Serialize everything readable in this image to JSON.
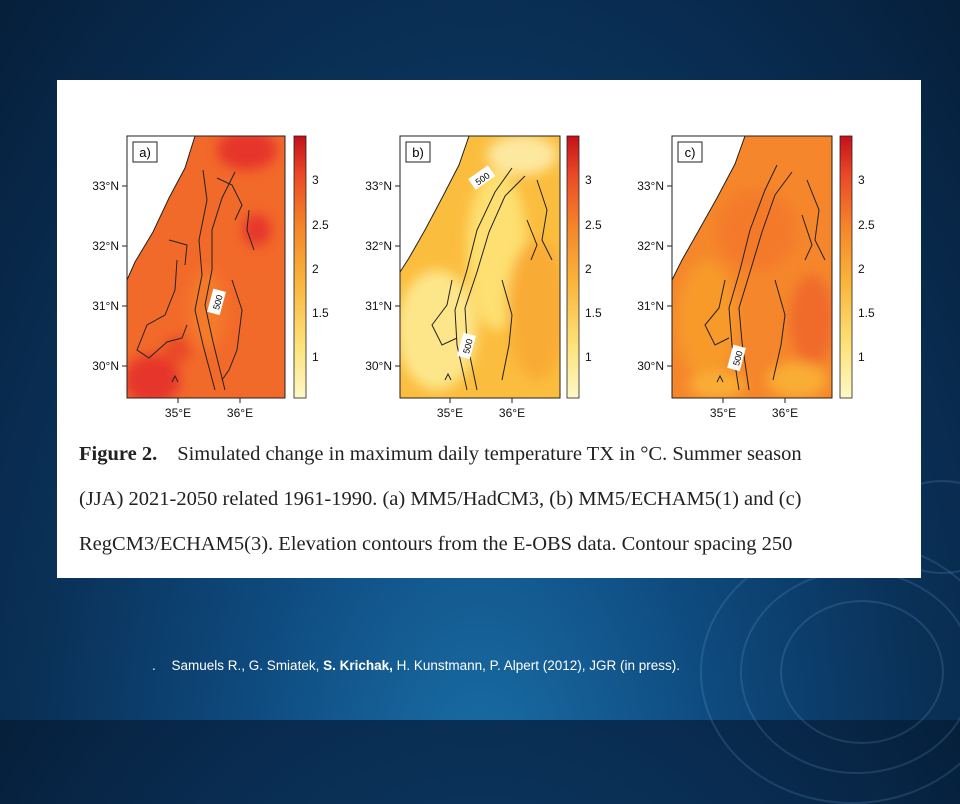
{
  "figure": {
    "panels": [
      {
        "label": "a)",
        "contour_label": "500",
        "lat_ticks": [
          "33°N",
          "32°N",
          "31°N",
          "30°N"
        ],
        "lon_ticks": [
          "35°E",
          "36°E"
        ]
      },
      {
        "label": "b)",
        "contour_label": "500",
        "contour_label_2": "500",
        "lat_ticks": [
          "33°N",
          "32°N",
          "31°N",
          "30°N"
        ],
        "lon_ticks": [
          "35°E",
          "36°E"
        ]
      },
      {
        "label": "c)",
        "contour_label": "500",
        "lat_ticks": [
          "33°N",
          "32°N",
          "31°N",
          "30°N"
        ],
        "lon_ticks": [
          "35°E",
          "36°E"
        ]
      }
    ],
    "colorbar_ticks": [
      "3",
      "2.5",
      "2",
      "1.5",
      "1"
    ],
    "colorscale": [
      "#fdf6b4",
      "#fde071",
      "#fbbd3e",
      "#f79a2b",
      "#f27a2a",
      "#ea5427",
      "#e02b22",
      "#c81019"
    ]
  },
  "caption": {
    "figure_label": "Figure 2.",
    "line1": "Simulated change in maximum daily temperature TX in °C. Summer season",
    "line2": "(JJA) 2021-2050 related 1961-1990. (a) MM5/HadCM3, (b) MM5/ECHAM5(1) and (c)",
    "line3": "RegCM3/ECHAM5(3). Elevation contours from the E-OBS data. Contour spacing 250"
  },
  "citation": {
    "bullet": ".",
    "part1": "Samuels R., G. Smiatek,",
    "bold": "S. Krichak,",
    "part2": "H. Kunstmann, P. Alpert (2012), JGR (in press)."
  }
}
